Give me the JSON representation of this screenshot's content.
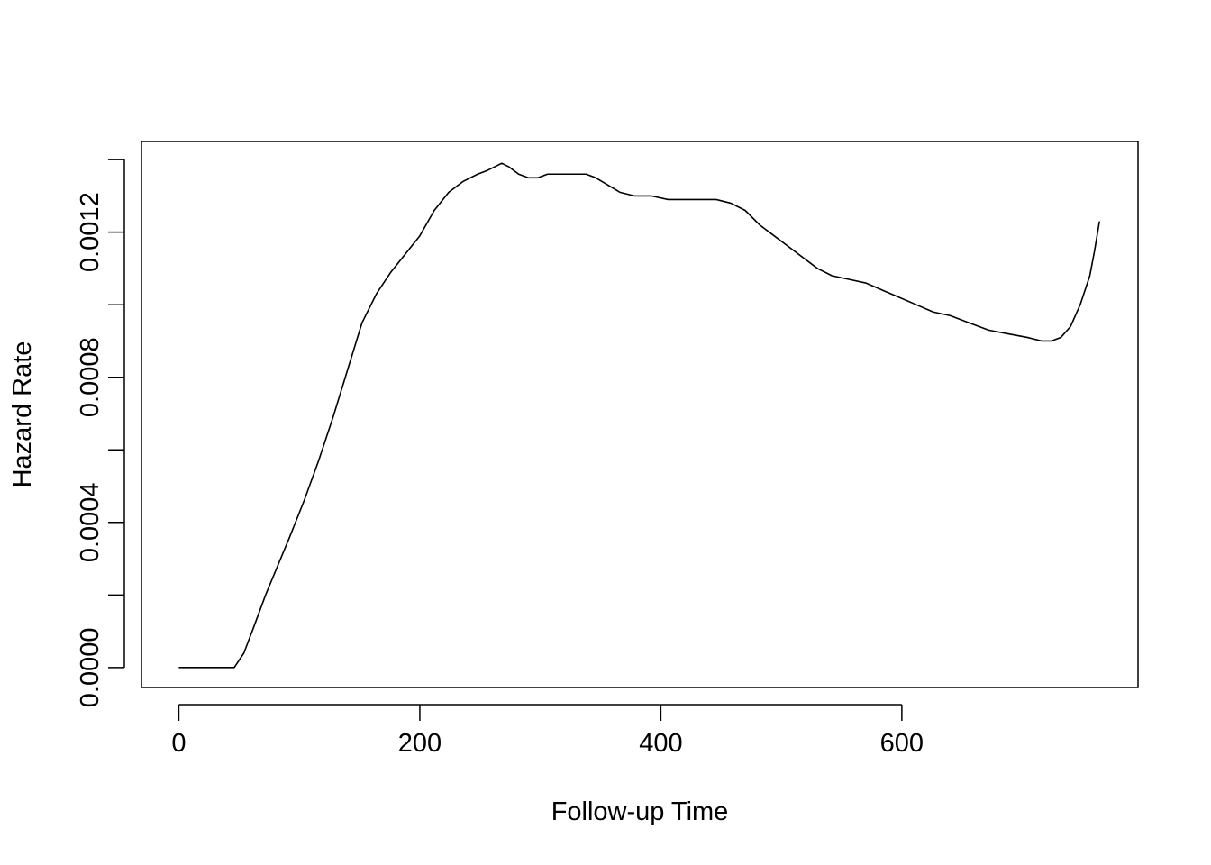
{
  "chart_data": {
    "type": "line",
    "title": "",
    "xlabel": "Follow-up Time",
    "ylabel": "Hazard Rate",
    "xlim": [
      -31,
      796
    ],
    "ylim": [
      -5.5e-05,
      0.00145
    ],
    "xticks": [
      0,
      200,
      400,
      600
    ],
    "xtick_labels": [
      "0",
      "200",
      "400",
      "600"
    ],
    "yticks": [
      0,
      0.0002,
      0.0004,
      0.0006,
      0.0008,
      0.001,
      0.0012,
      0.0014
    ],
    "ytick_labels": [
      "0.0000",
      "",
      "0.0004",
      "",
      "0.0008",
      "",
      "0.0012",
      ""
    ],
    "grid": false,
    "series": [
      {
        "name": "",
        "color": "#000000",
        "x": [
          0,
          10,
          20,
          30,
          40,
          46,
          54,
          62,
          72,
          82,
          92,
          104,
          116,
          128,
          140,
          152,
          164,
          176,
          188,
          200,
          212,
          224,
          236,
          248,
          256,
          262,
          268,
          274,
          282,
          290,
          298,
          306,
          314,
          322,
          330,
          338,
          346,
          356,
          366,
          378,
          392,
          406,
          420,
          434,
          446,
          458,
          470,
          482,
          494,
          506,
          518,
          530,
          542,
          556,
          570,
          584,
          598,
          612,
          626,
          640,
          656,
          672,
          688,
          704,
          716,
          724,
          732,
          740,
          748,
          756,
          760,
          764
        ],
        "y": [
          0,
          0,
          0,
          0,
          0,
          0,
          4e-05,
          0.00011,
          0.0002,
          0.00028,
          0.00036,
          0.00046,
          0.00057,
          0.00069,
          0.00082,
          0.00095,
          0.00103,
          0.00109,
          0.00114,
          0.00119,
          0.00126,
          0.00131,
          0.00134,
          0.00136,
          0.00137,
          0.00138,
          0.00139,
          0.00138,
          0.00136,
          0.00135,
          0.00135,
          0.00136,
          0.00136,
          0.00136,
          0.00136,
          0.00136,
          0.00135,
          0.00133,
          0.00131,
          0.0013,
          0.0013,
          0.00129,
          0.00129,
          0.00129,
          0.00129,
          0.00128,
          0.00126,
          0.00122,
          0.00119,
          0.00116,
          0.00113,
          0.0011,
          0.00108,
          0.00107,
          0.00106,
          0.00104,
          0.00102,
          0.001,
          0.00098,
          0.00097,
          0.00095,
          0.00093,
          0.00092,
          0.00091,
          0.0009,
          0.0009,
          0.00091,
          0.00094,
          0.001,
          0.00108,
          0.00115,
          0.00123
        ]
      }
    ]
  }
}
